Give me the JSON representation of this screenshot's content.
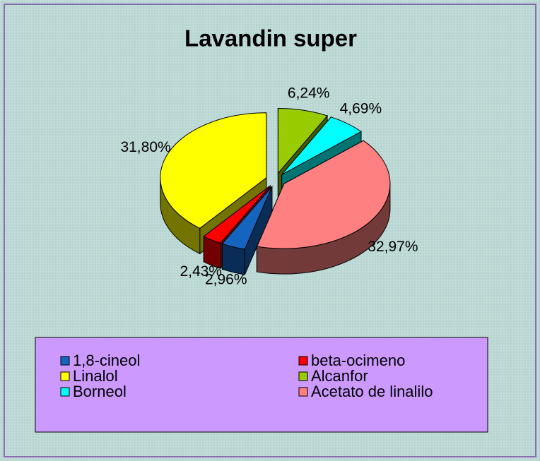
{
  "chart_data": {
    "type": "pie3d",
    "title": "Lavandin super",
    "categories": [
      "1,8-cineol",
      "beta-ocimeno",
      "Linalol",
      "Alcanfor",
      "Borneol",
      "Acetato de linalilo"
    ],
    "values": [
      2.96,
      2.43,
      31.8,
      6.24,
      4.69,
      32.97
    ],
    "value_labels": [
      "2,96%",
      "2,43%",
      "31,80%",
      "6,24%",
      "4,69%",
      "32,97%"
    ],
    "colors": [
      "#1565c0",
      "#ff0000",
      "#ffff00",
      "#99cc00",
      "#00ffff",
      "#ff8080"
    ],
    "legend": "bottom"
  }
}
